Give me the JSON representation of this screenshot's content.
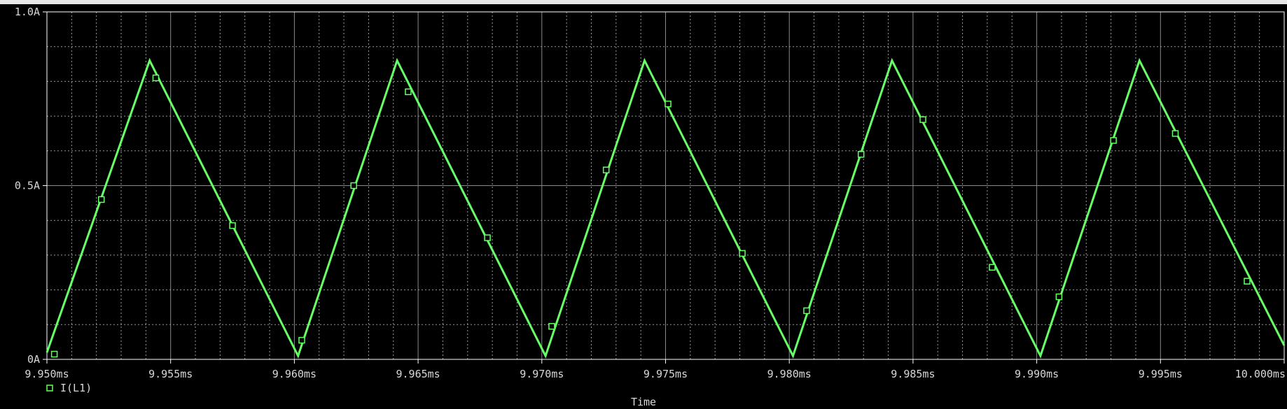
{
  "chart_data": {
    "type": "line",
    "title": "",
    "xlabel": "Time",
    "ylabel": "",
    "xlim": [
      9.95,
      10.0
    ],
    "ylim": [
      0,
      1.0
    ],
    "x_ticks": [
      9.95,
      9.955,
      9.96,
      9.965,
      9.97,
      9.975,
      9.98,
      9.985,
      9.99,
      9.995,
      10.0
    ],
    "x_tick_labels": [
      "9.950ms",
      "9.955ms",
      "9.960ms",
      "9.965ms",
      "9.970ms",
      "9.975ms",
      "9.980ms",
      "9.985ms",
      "9.990ms",
      "9.995ms",
      "10.000ms"
    ],
    "y_ticks": [
      0,
      0.5,
      1.0
    ],
    "y_tick_labels": [
      "0A",
      "0.5A",
      "1.0A"
    ],
    "grid": true,
    "legend": "bottom-left",
    "series": [
      {
        "name": "I(L1)",
        "color": "#66ff66",
        "marker": "square",
        "x": [
          9.95,
          9.95415,
          9.96015,
          9.96415,
          9.97015,
          9.97415,
          9.98015,
          9.98415,
          9.99015,
          9.99415,
          10.0
        ],
        "y": [
          0.02,
          0.86,
          0.01,
          0.86,
          0.01,
          0.86,
          0.01,
          0.86,
          0.01,
          0.86,
          0.04
        ],
        "marker_points": [
          [
            9.9503,
            0.015
          ],
          [
            9.9522,
            0.46
          ],
          [
            9.9544,
            0.81
          ],
          [
            9.9575,
            0.385
          ],
          [
            9.9603,
            0.055
          ],
          [
            9.9624,
            0.5
          ],
          [
            9.9646,
            0.77
          ],
          [
            9.9678,
            0.35
          ],
          [
            9.9704,
            0.095
          ],
          [
            9.9726,
            0.545
          ],
          [
            9.9751,
            0.735
          ],
          [
            9.9781,
            0.305
          ],
          [
            9.9807,
            0.14
          ],
          [
            9.9829,
            0.59
          ],
          [
            9.9854,
            0.69
          ],
          [
            9.9882,
            0.265
          ],
          [
            9.9909,
            0.18
          ],
          [
            9.9931,
            0.63
          ],
          [
            9.9956,
            0.65
          ],
          [
            9.9985,
            0.225
          ]
        ]
      }
    ]
  }
}
